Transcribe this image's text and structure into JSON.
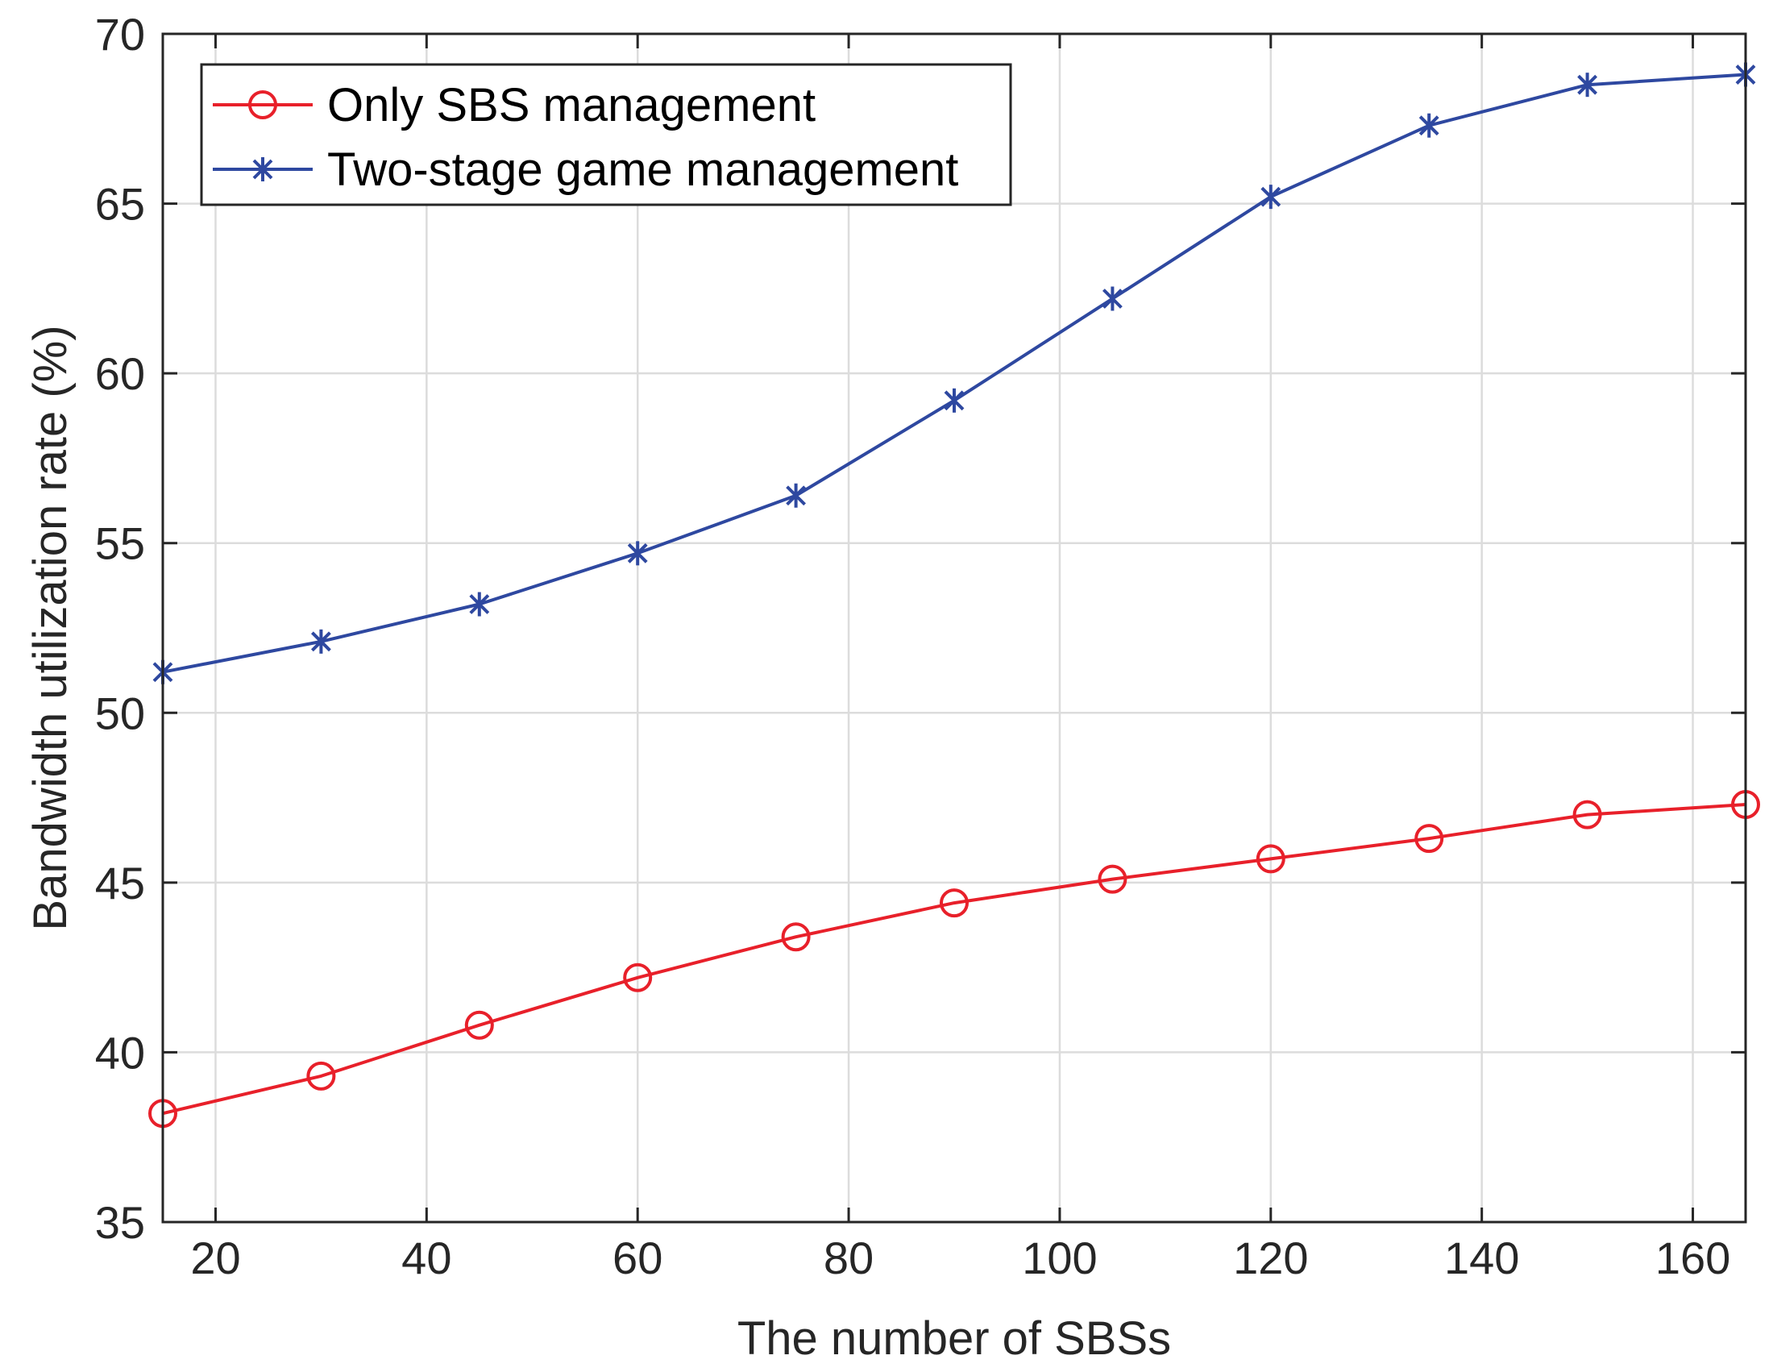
{
  "chart_data": {
    "type": "line",
    "xlabel": "The number of SBSs",
    "ylabel": "Bandwidth utilization rate (%)",
    "xlim": [
      15,
      165
    ],
    "ylim": [
      35,
      70
    ],
    "xticks": [
      20,
      40,
      60,
      80,
      100,
      120,
      140,
      160
    ],
    "yticks": [
      35,
      40,
      45,
      50,
      55,
      60,
      65,
      70
    ],
    "grid": true,
    "legend_position": "top-left",
    "x": [
      15,
      30,
      45,
      60,
      75,
      90,
      105,
      120,
      135,
      150,
      165
    ],
    "series": [
      {
        "name": "Only SBS management",
        "marker": "circle",
        "color": "#e8202a",
        "values": [
          38.2,
          39.3,
          40.8,
          42.2,
          43.4,
          44.4,
          45.1,
          45.7,
          46.3,
          47.0,
          47.3
        ]
      },
      {
        "name": "Two-stage game management",
        "marker": "asterisk",
        "color": "#2e48a0",
        "values": [
          51.2,
          52.1,
          53.2,
          54.7,
          56.4,
          59.2,
          62.2,
          65.2,
          67.3,
          68.5,
          68.8
        ]
      }
    ]
  }
}
